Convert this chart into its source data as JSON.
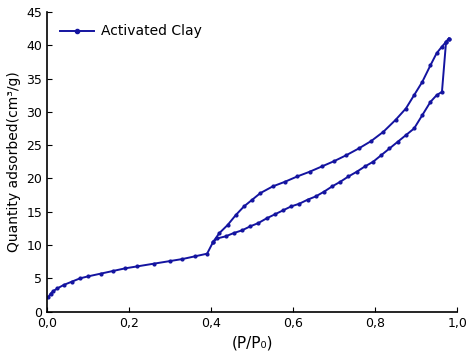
{
  "title": "",
  "xlabel": "(P/P₀)",
  "ylabel": "Quantity adsorbed(cm³/g)",
  "legend_label": "Activated Clay",
  "line_color": "#1414a0",
  "marker": ".",
  "markersize": 4,
  "linewidth": 1.4,
  "xlim": [
    0.0,
    1.0
  ],
  "ylim": [
    0,
    45
  ],
  "xticks": [
    0.0,
    0.2,
    0.4,
    0.6,
    0.8,
    1.0
  ],
  "yticks": [
    0,
    5,
    10,
    15,
    20,
    25,
    30,
    35,
    40,
    45
  ],
  "adsorption_x": [
    0.003,
    0.008,
    0.015,
    0.025,
    0.04,
    0.06,
    0.08,
    0.1,
    0.13,
    0.16,
    0.19,
    0.22,
    0.26,
    0.3,
    0.33,
    0.36,
    0.39,
    0.405,
    0.42,
    0.44,
    0.46,
    0.48,
    0.5,
    0.52,
    0.55,
    0.58,
    0.61,
    0.64,
    0.67,
    0.7,
    0.73,
    0.76,
    0.79,
    0.82,
    0.85,
    0.875,
    0.895,
    0.915,
    0.935,
    0.95,
    0.963,
    0.973,
    0.98
  ],
  "adsorption_y": [
    2.2,
    2.7,
    3.1,
    3.5,
    4.0,
    4.5,
    5.0,
    5.3,
    5.7,
    6.1,
    6.5,
    6.8,
    7.2,
    7.6,
    7.9,
    8.3,
    8.7,
    10.5,
    11.8,
    13.0,
    14.5,
    15.8,
    16.8,
    17.8,
    18.8,
    19.5,
    20.3,
    21.0,
    21.8,
    22.6,
    23.5,
    24.5,
    25.6,
    27.0,
    28.8,
    30.5,
    32.5,
    34.5,
    37.0,
    38.8,
    39.8,
    40.5,
    41.0
  ],
  "desorption_x": [
    0.98,
    0.973,
    0.963,
    0.95,
    0.935,
    0.915,
    0.895,
    0.875,
    0.855,
    0.835,
    0.815,
    0.795,
    0.775,
    0.755,
    0.735,
    0.715,
    0.695,
    0.675,
    0.655,
    0.635,
    0.615,
    0.595,
    0.575,
    0.555,
    0.535,
    0.515,
    0.495,
    0.475,
    0.455,
    0.435,
    0.415,
    0.405
  ],
  "desorption_y": [
    41.0,
    40.5,
    33.0,
    32.5,
    31.5,
    29.5,
    27.5,
    26.5,
    25.5,
    24.5,
    23.5,
    22.5,
    21.8,
    21.0,
    20.3,
    19.5,
    18.8,
    18.0,
    17.3,
    16.8,
    16.2,
    15.8,
    15.2,
    14.6,
    14.0,
    13.3,
    12.8,
    12.2,
    11.8,
    11.3,
    11.0,
    10.5
  ]
}
